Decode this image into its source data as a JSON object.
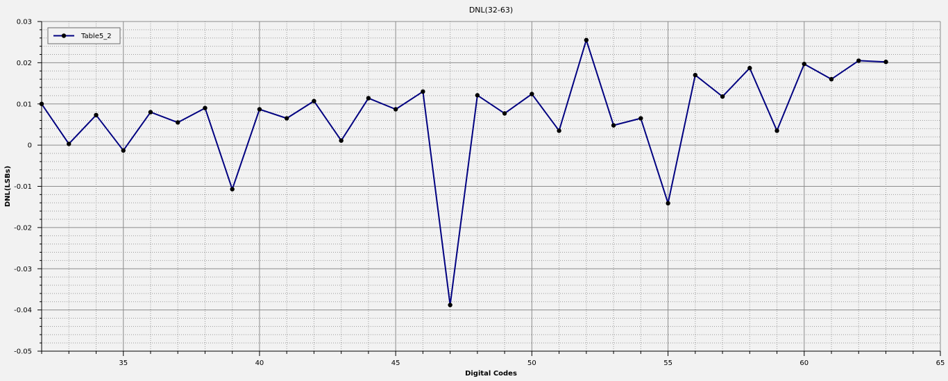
{
  "chart_data": {
    "type": "line",
    "title": "DNL(32-63)",
    "xlabel": "Digital Codes",
    "ylabel": "DNL(LSBs)",
    "xlim": [
      32,
      65
    ],
    "ylim": [
      -0.05,
      0.03
    ],
    "x_ticks": [
      35,
      40,
      45,
      50,
      55,
      60,
      65
    ],
    "x_tick_labels": [
      "35",
      "40",
      "45",
      "50",
      "55",
      "60",
      "65"
    ],
    "y_ticks": [
      -0.05,
      -0.04,
      -0.03,
      -0.02,
      -0.01,
      0,
      0.01,
      0.02,
      0.03
    ],
    "y_tick_labels": [
      "-0.05",
      "-0.04",
      "-0.03",
      "-0.02",
      "-0.01",
      "0",
      "0.01",
      "0.02",
      "0.03"
    ],
    "grid": true,
    "legend_position": "top-left",
    "series": [
      {
        "name": "Table5_2",
        "color": "#000080",
        "marker_color": "#000000",
        "x": [
          32,
          33,
          34,
          35,
          36,
          37,
          38,
          39,
          40,
          41,
          42,
          43,
          44,
          45,
          46,
          47,
          48,
          49,
          50,
          51,
          52,
          53,
          54,
          55,
          56,
          57,
          58,
          59,
          60,
          61,
          62,
          63
        ],
        "y": [
          0.01,
          0.0003,
          0.0073,
          -0.0013,
          0.008,
          0.0055,
          0.009,
          -0.0107,
          0.0087,
          0.0065,
          0.0107,
          0.0011,
          0.0114,
          0.0087,
          0.013,
          -0.0388,
          0.0121,
          0.0077,
          0.0124,
          0.0035,
          0.0255,
          0.0048,
          0.0065,
          -0.0141,
          0.017,
          0.0118,
          0.0187,
          0.0035,
          0.0197,
          0.016,
          0.0205,
          0.0202
        ]
      }
    ]
  }
}
